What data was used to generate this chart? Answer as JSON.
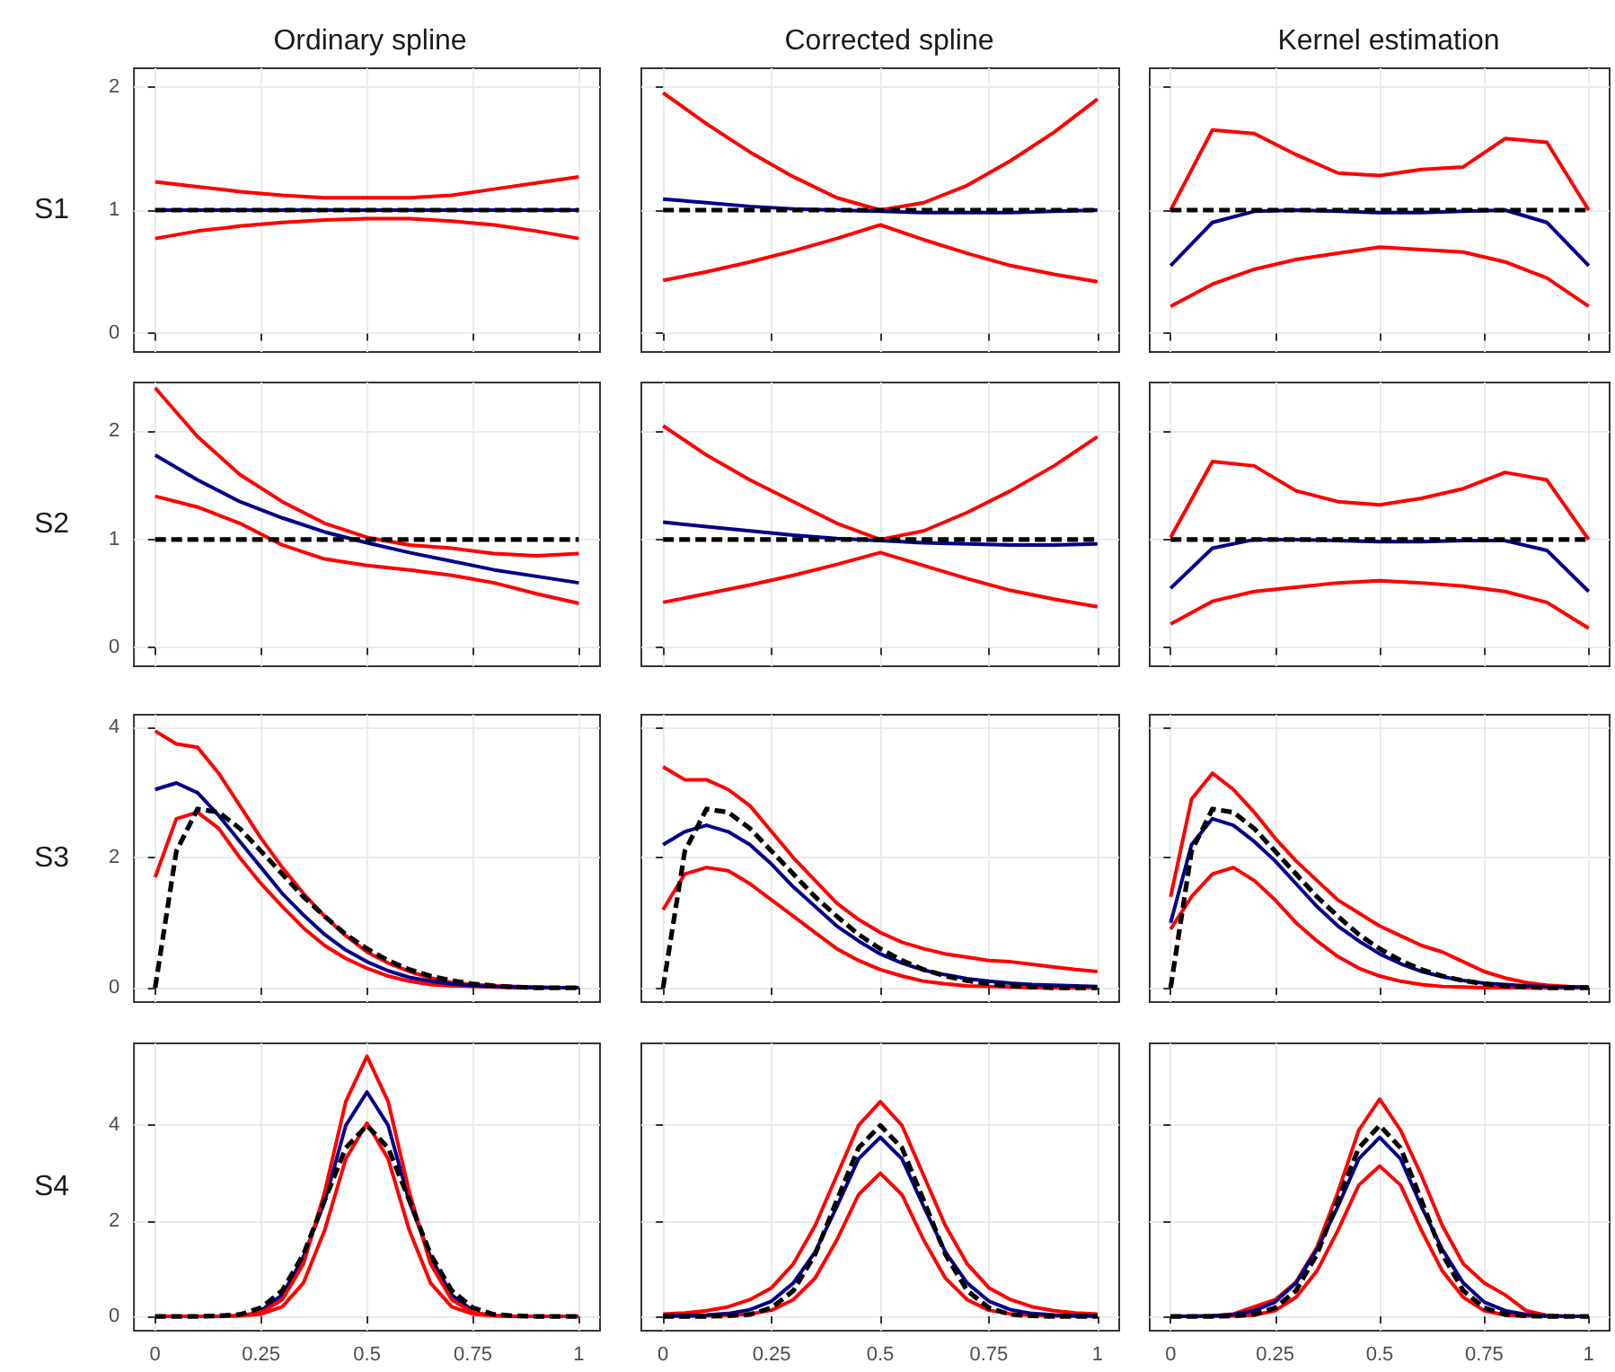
{
  "chart_data": [
    {
      "type": "line",
      "title": "Ordinary spline",
      "ylabel": "S1",
      "x": [
        0,
        0.1,
        0.2,
        0.3,
        0.4,
        0.5,
        0.6,
        0.7,
        0.8,
        0.9,
        1
      ],
      "xlim": [
        -0.05,
        1.05
      ],
      "ylim": [
        -0.15,
        2.15
      ],
      "xticks": [
        0,
        0.25,
        0.5,
        0.75,
        1
      ],
      "yticks": [
        0,
        1,
        2
      ],
      "grid": true,
      "marker": "none",
      "tick_labels": "y",
      "series": [
        {
          "color": "#ff0000",
          "values": [
            1.23,
            1.19,
            1.15,
            1.12,
            1.1,
            1.1,
            1.1,
            1.12,
            1.17,
            1.22,
            1.27
          ]
        },
        {
          "color": "#ff0000",
          "values": [
            0.77,
            0.83,
            0.87,
            0.9,
            0.92,
            0.93,
            0.93,
            0.91,
            0.88,
            0.83,
            0.77
          ]
        },
        {
          "color": "#00008b",
          "values": [
            1,
            1,
            1,
            1,
            1,
            1,
            1,
            1,
            1,
            1,
            1
          ]
        },
        {
          "color": "#000000",
          "line_style": "dashed",
          "values": [
            1,
            1,
            1,
            1,
            1,
            1,
            1,
            1,
            1,
            1,
            1
          ]
        }
      ]
    },
    {
      "type": "line",
      "title": "Corrected spline",
      "x": [
        0,
        0.1,
        0.2,
        0.3,
        0.4,
        0.5,
        0.6,
        0.7,
        0.8,
        0.9,
        1
      ],
      "xlim": [
        -0.05,
        1.05
      ],
      "ylim": [
        -0.15,
        2.15
      ],
      "xticks": [
        0,
        0.25,
        0.5,
        0.75,
        1
      ],
      "yticks": [
        0,
        1,
        2
      ],
      "grid": true,
      "marker": "none",
      "tick_labels": false,
      "series": [
        {
          "color": "#ff0000",
          "values": [
            1.95,
            1.7,
            1.47,
            1.27,
            1.1,
            1.0,
            1.06,
            1.2,
            1.4,
            1.63,
            1.9
          ]
        },
        {
          "color": "#ff0000",
          "values": [
            0.43,
            0.5,
            0.58,
            0.67,
            0.77,
            0.88,
            0.76,
            0.65,
            0.55,
            0.48,
            0.42
          ]
        },
        {
          "color": "#00008b",
          "values": [
            1.09,
            1.06,
            1.03,
            1.01,
            1.0,
            0.99,
            0.98,
            0.98,
            0.98,
            0.99,
            1.0
          ]
        },
        {
          "color": "#000000",
          "line_style": "dashed",
          "values": [
            1,
            1,
            1,
            1,
            1,
            1,
            1,
            1,
            1,
            1,
            1
          ]
        }
      ]
    },
    {
      "type": "line",
      "title": "Kernel estimation",
      "x": [
        0,
        0.1,
        0.2,
        0.3,
        0.4,
        0.5,
        0.6,
        0.7,
        0.8,
        0.9,
        1
      ],
      "xlim": [
        -0.05,
        1.05
      ],
      "ylim": [
        -0.15,
        2.15
      ],
      "xticks": [
        0,
        0.25,
        0.5,
        0.75,
        1
      ],
      "yticks": [
        0,
        1,
        2
      ],
      "grid": true,
      "marker": "none",
      "tick_labels": false,
      "series": [
        {
          "color": "#ff0000",
          "values": [
            1.0,
            1.65,
            1.62,
            1.45,
            1.3,
            1.28,
            1.33,
            1.35,
            1.58,
            1.55,
            1.0
          ]
        },
        {
          "color": "#ff0000",
          "values": [
            0.22,
            0.4,
            0.52,
            0.6,
            0.65,
            0.7,
            0.68,
            0.66,
            0.58,
            0.45,
            0.22
          ]
        },
        {
          "color": "#00008b",
          "values": [
            0.55,
            0.9,
            0.99,
            1.0,
            0.99,
            0.98,
            0.98,
            0.99,
            1.0,
            0.9,
            0.55
          ]
        },
        {
          "color": "#000000",
          "line_style": "dashed",
          "values": [
            1,
            1,
            1,
            1,
            1,
            1,
            1,
            1,
            1,
            1,
            1
          ]
        }
      ]
    },
    {
      "type": "line",
      "ylabel": "S2",
      "x": [
        0,
        0.1,
        0.2,
        0.3,
        0.4,
        0.5,
        0.6,
        0.7,
        0.8,
        0.9,
        1
      ],
      "xlim": [
        -0.05,
        1.05
      ],
      "ylim": [
        -0.17,
        2.45
      ],
      "xticks": [
        0,
        0.25,
        0.5,
        0.75,
        1
      ],
      "yticks": [
        0,
        1,
        2
      ],
      "grid": true,
      "marker": "none",
      "tick_labels": "y",
      "series": [
        {
          "color": "#ff0000",
          "values": [
            2.4,
            1.95,
            1.6,
            1.35,
            1.15,
            1.02,
            0.95,
            0.92,
            0.87,
            0.85,
            0.87
          ]
        },
        {
          "color": "#ff0000",
          "values": [
            1.4,
            1.3,
            1.15,
            0.95,
            0.82,
            0.76,
            0.72,
            0.67,
            0.6,
            0.5,
            0.41
          ]
        },
        {
          "color": "#00008b",
          "values": [
            1.78,
            1.55,
            1.35,
            1.2,
            1.07,
            0.97,
            0.88,
            0.8,
            0.72,
            0.66,
            0.6
          ]
        },
        {
          "color": "#000000",
          "line_style": "dashed",
          "values": [
            1,
            1,
            1,
            1,
            1,
            1,
            1,
            1,
            1,
            1,
            1
          ]
        }
      ]
    },
    {
      "type": "line",
      "x": [
        0,
        0.1,
        0.2,
        0.3,
        0.4,
        0.5,
        0.6,
        0.7,
        0.8,
        0.9,
        1
      ],
      "xlim": [
        -0.05,
        1.05
      ],
      "ylim": [
        -0.17,
        2.45
      ],
      "xticks": [
        0,
        0.25,
        0.5,
        0.75,
        1
      ],
      "yticks": [
        0,
        1,
        2
      ],
      "grid": true,
      "marker": "none",
      "tick_labels": false,
      "series": [
        {
          "color": "#ff0000",
          "values": [
            2.05,
            1.78,
            1.55,
            1.35,
            1.15,
            1.0,
            1.08,
            1.25,
            1.45,
            1.68,
            1.95
          ]
        },
        {
          "color": "#ff0000",
          "values": [
            0.42,
            0.5,
            0.58,
            0.67,
            0.77,
            0.88,
            0.76,
            0.64,
            0.53,
            0.45,
            0.38
          ]
        },
        {
          "color": "#00008b",
          "values": [
            1.16,
            1.12,
            1.08,
            1.04,
            1.01,
            0.99,
            0.97,
            0.96,
            0.95,
            0.95,
            0.96
          ]
        },
        {
          "color": "#000000",
          "line_style": "dashed",
          "values": [
            1,
            1,
            1,
            1,
            1,
            1,
            1,
            1,
            1,
            1,
            1
          ]
        }
      ]
    },
    {
      "type": "line",
      "x": [
        0,
        0.1,
        0.2,
        0.3,
        0.4,
        0.5,
        0.6,
        0.7,
        0.8,
        0.9,
        1
      ],
      "xlim": [
        -0.05,
        1.05
      ],
      "ylim": [
        -0.17,
        2.45
      ],
      "xticks": [
        0,
        0.25,
        0.5,
        0.75,
        1
      ],
      "yticks": [
        0,
        1,
        2
      ],
      "grid": true,
      "marker": "none",
      "tick_labels": false,
      "series": [
        {
          "color": "#ff0000",
          "values": [
            1.02,
            1.72,
            1.68,
            1.45,
            1.35,
            1.32,
            1.38,
            1.47,
            1.62,
            1.55,
            1.0
          ]
        },
        {
          "color": "#ff0000",
          "values": [
            0.22,
            0.43,
            0.52,
            0.56,
            0.6,
            0.62,
            0.6,
            0.57,
            0.52,
            0.42,
            0.18
          ]
        },
        {
          "color": "#00008b",
          "values": [
            0.55,
            0.92,
            1.0,
            1.0,
            0.99,
            0.98,
            0.98,
            0.99,
            0.99,
            0.9,
            0.52
          ]
        },
        {
          "color": "#000000",
          "line_style": "dashed",
          "values": [
            1,
            1,
            1,
            1,
            1,
            1,
            1,
            1,
            1,
            1,
            1
          ]
        }
      ]
    },
    {
      "type": "line",
      "ylabel": "S3",
      "x": [
        0,
        0.05,
        0.1,
        0.15,
        0.2,
        0.25,
        0.3,
        0.35,
        0.4,
        0.45,
        0.5,
        0.55,
        0.6,
        0.65,
        0.7,
        0.75,
        0.8,
        0.85,
        0.9,
        0.95,
        1
      ],
      "xlim": [
        -0.05,
        1.05
      ],
      "ylim": [
        -0.22,
        4.2
      ],
      "xticks": [
        0,
        0.25,
        0.5,
        0.75,
        1
      ],
      "yticks": [
        0,
        2,
        4
      ],
      "grid": true,
      "marker": "none",
      "tick_labels": "y",
      "series": [
        {
          "color": "#ff0000",
          "values": [
            3.95,
            3.75,
            3.7,
            3.3,
            2.8,
            2.3,
            1.85,
            1.45,
            1.1,
            0.8,
            0.55,
            0.38,
            0.25,
            0.15,
            0.08,
            0.05,
            0.03,
            0.02,
            0.01,
            0,
            0
          ]
        },
        {
          "color": "#ff0000",
          "values": [
            1.7,
            2.6,
            2.7,
            2.45,
            2.0,
            1.6,
            1.25,
            0.92,
            0.65,
            0.45,
            0.3,
            0.18,
            0.1,
            0.05,
            0.03,
            0.02,
            0.01,
            0,
            0,
            0,
            0
          ]
        },
        {
          "color": "#00008b",
          "values": [
            3.05,
            3.15,
            3.0,
            2.65,
            2.25,
            1.85,
            1.45,
            1.12,
            0.82,
            0.58,
            0.4,
            0.26,
            0.16,
            0.1,
            0.06,
            0.03,
            0.02,
            0.01,
            0,
            0,
            0
          ]
        },
        {
          "color": "#000000",
          "line_style": "dashed",
          "values": [
            0,
            2.1,
            2.75,
            2.7,
            2.45,
            2.1,
            1.75,
            1.4,
            1.1,
            0.82,
            0.6,
            0.42,
            0.28,
            0.18,
            0.11,
            0.06,
            0.03,
            0.01,
            0,
            0,
            0
          ]
        }
      ]
    },
    {
      "type": "line",
      "x": [
        0,
        0.05,
        0.1,
        0.15,
        0.2,
        0.25,
        0.3,
        0.35,
        0.4,
        0.45,
        0.5,
        0.55,
        0.6,
        0.65,
        0.7,
        0.75,
        0.8,
        0.85,
        0.9,
        0.95,
        1
      ],
      "xlim": [
        -0.05,
        1.05
      ],
      "ylim": [
        -0.22,
        4.2
      ],
      "xticks": [
        0,
        0.25,
        0.5,
        0.75,
        1
      ],
      "yticks": [
        0,
        2,
        4
      ],
      "grid": true,
      "marker": "none",
      "tick_labels": false,
      "series": [
        {
          "color": "#ff0000",
          "values": [
            3.4,
            3.2,
            3.2,
            3.05,
            2.8,
            2.4,
            2.0,
            1.65,
            1.3,
            1.05,
            0.85,
            0.7,
            0.6,
            0.52,
            0.47,
            0.42,
            0.4,
            0.36,
            0.32,
            0.28,
            0.25
          ]
        },
        {
          "color": "#ff0000",
          "values": [
            1.2,
            1.75,
            1.85,
            1.8,
            1.6,
            1.35,
            1.1,
            0.85,
            0.6,
            0.42,
            0.28,
            0.18,
            0.1,
            0.06,
            0.03,
            0.02,
            0.01,
            0,
            0,
            0,
            0
          ]
        },
        {
          "color": "#00008b",
          "values": [
            2.2,
            2.4,
            2.5,
            2.4,
            2.2,
            1.9,
            1.55,
            1.25,
            0.95,
            0.72,
            0.52,
            0.38,
            0.27,
            0.2,
            0.14,
            0.1,
            0.07,
            0.05,
            0.04,
            0.03,
            0.02
          ]
        },
        {
          "color": "#000000",
          "line_style": "dashed",
          "values": [
            0,
            2.1,
            2.75,
            2.7,
            2.45,
            2.1,
            1.75,
            1.4,
            1.1,
            0.82,
            0.6,
            0.42,
            0.28,
            0.18,
            0.11,
            0.06,
            0.03,
            0.01,
            0,
            0,
            0
          ]
        }
      ]
    },
    {
      "type": "line",
      "x": [
        0,
        0.05,
        0.1,
        0.15,
        0.2,
        0.25,
        0.3,
        0.35,
        0.4,
        0.45,
        0.5,
        0.55,
        0.6,
        0.65,
        0.7,
        0.75,
        0.8,
        0.85,
        0.9,
        0.95,
        1
      ],
      "xlim": [
        -0.05,
        1.05
      ],
      "ylim": [
        -0.22,
        4.2
      ],
      "xticks": [
        0,
        0.25,
        0.5,
        0.75,
        1
      ],
      "yticks": [
        0,
        2,
        4
      ],
      "grid": true,
      "marker": "none",
      "tick_labels": false,
      "series": [
        {
          "color": "#ff0000",
          "values": [
            1.4,
            2.9,
            3.3,
            3.05,
            2.7,
            2.3,
            1.95,
            1.65,
            1.35,
            1.15,
            0.95,
            0.8,
            0.65,
            0.55,
            0.4,
            0.25,
            0.15,
            0.08,
            0.04,
            0.02,
            0
          ]
        },
        {
          "color": "#ff0000",
          "values": [
            0.9,
            1.4,
            1.75,
            1.85,
            1.65,
            1.35,
            1.0,
            0.72,
            0.48,
            0.3,
            0.18,
            0.1,
            0.05,
            0.02,
            0.01,
            0,
            0,
            0,
            0,
            0,
            0
          ]
        },
        {
          "color": "#00008b",
          "values": [
            1.0,
            2.2,
            2.6,
            2.5,
            2.25,
            1.95,
            1.6,
            1.25,
            0.95,
            0.72,
            0.52,
            0.37,
            0.25,
            0.17,
            0.11,
            0.07,
            0.05,
            0.03,
            0.02,
            0.01,
            0.01
          ]
        },
        {
          "color": "#000000",
          "line_style": "dashed",
          "values": [
            0,
            2.1,
            2.75,
            2.7,
            2.45,
            2.1,
            1.75,
            1.4,
            1.1,
            0.82,
            0.6,
            0.42,
            0.28,
            0.18,
            0.11,
            0.06,
            0.03,
            0.01,
            0,
            0,
            0
          ]
        }
      ]
    },
    {
      "type": "line",
      "ylabel": "S4",
      "x": [
        0,
        0.05,
        0.1,
        0.15,
        0.2,
        0.25,
        0.3,
        0.35,
        0.4,
        0.45,
        0.5,
        0.55,
        0.6,
        0.65,
        0.7,
        0.75,
        0.8,
        0.85,
        0.9,
        0.95,
        1
      ],
      "xlim": [
        -0.05,
        1.05
      ],
      "ylim": [
        -0.3,
        5.72
      ],
      "xticks": [
        0,
        0.25,
        0.5,
        0.75,
        1
      ],
      "yticks": [
        0,
        2,
        4
      ],
      "grid": true,
      "marker": "none",
      "series": [
        {
          "color": "#00008b",
          "values": [
            null,
            null,
            null,
            null,
            null,
            0.12,
            0.45,
            1.25,
            2.4,
            4.0,
            4.7,
            4.0,
            2.4,
            1.25,
            0.45,
            0.12,
            null,
            null,
            null,
            null,
            null
          ]
        },
        {
          "color": "#ff0000",
          "values": [
            null,
            null,
            null,
            0,
            0.01,
            0.05,
            0.2,
            0.7,
            1.8,
            3.3,
            4.05,
            3.3,
            1.8,
            0.7,
            0.2,
            0.05,
            0.01,
            0,
            null,
            null,
            null
          ]
        },
        {
          "color": "#ff0000",
          "values": [
            0,
            0,
            0,
            0,
            0.02,
            0.08,
            0.35,
            1.1,
            2.6,
            4.5,
            5.45,
            4.5,
            2.6,
            1.1,
            0.35,
            0.08,
            0.02,
            0,
            0,
            0,
            0
          ]
        },
        {
          "color": "#000000",
          "line_style": "dashed",
          "values": [
            0,
            0,
            0,
            0.01,
            0.04,
            0.18,
            0.54,
            1.3,
            2.43,
            3.53,
            4.0,
            3.53,
            2.43,
            1.3,
            0.54,
            0.18,
            0.04,
            0.01,
            0,
            0,
            0
          ]
        }
      ]
    },
    {
      "type": "line",
      "x": [
        0,
        0.05,
        0.1,
        0.15,
        0.2,
        0.25,
        0.3,
        0.35,
        0.4,
        0.45,
        0.5,
        0.55,
        0.6,
        0.65,
        0.7,
        0.75,
        0.8,
        0.85,
        0.9,
        0.95,
        1
      ],
      "xlim": [
        -0.05,
        1.05
      ],
      "ylim": [
        -0.3,
        5.72
      ],
      "xticks": [
        0,
        0.25,
        0.5,
        0.75,
        1
      ],
      "yticks": [
        0,
        2,
        4
      ],
      "grid": true,
      "marker": "none",
      "tick_labels": "x",
      "series": [
        {
          "color": "#ff0000",
          "values": [
            0.05,
            0.07,
            0.12,
            0.2,
            0.35,
            0.6,
            1.1,
            1.9,
            2.95,
            4.0,
            4.5,
            4.0,
            2.95,
            1.9,
            1.1,
            0.6,
            0.35,
            0.2,
            0.12,
            0.07,
            0.05
          ]
        },
        {
          "color": "#ff0000",
          "values": [
            0,
            0,
            0.01,
            0.02,
            0.05,
            0.13,
            0.35,
            0.8,
            1.6,
            2.55,
            3.0,
            2.55,
            1.6,
            0.8,
            0.35,
            0.13,
            0.05,
            0.02,
            0.01,
            0,
            0
          ]
        },
        {
          "color": "#00008b",
          "values": [
            0.01,
            0.02,
            0.03,
            0.06,
            0.14,
            0.32,
            0.7,
            1.35,
            2.3,
            3.3,
            3.75,
            3.3,
            2.3,
            1.35,
            0.7,
            0.32,
            0.14,
            0.06,
            0.03,
            0.02,
            0.01
          ]
        },
        {
          "color": "#000000",
          "line_style": "dashed",
          "values": [
            0,
            0,
            0,
            0.01,
            0.04,
            0.18,
            0.54,
            1.3,
            2.43,
            3.53,
            4.0,
            3.53,
            2.43,
            1.3,
            0.54,
            0.18,
            0.04,
            0.01,
            0,
            0,
            0
          ]
        }
      ]
    },
    {
      "type": "line",
      "x": [
        0,
        0.05,
        0.1,
        0.15,
        0.2,
        0.25,
        0.3,
        0.35,
        0.4,
        0.45,
        0.5,
        0.55,
        0.6,
        0.65,
        0.7,
        0.75,
        0.8,
        0.85,
        0.9,
        0.95,
        1
      ],
      "xlim": [
        -0.05,
        1.05
      ],
      "ylim": [
        -0.3,
        5.72
      ],
      "xticks": [
        0,
        0.25,
        0.5,
        0.75,
        1
      ],
      "yticks": [
        0,
        2,
        4
      ],
      "grid": true,
      "marker": "none",
      "tick_labels": "x",
      "series": [
        {
          "color": "#ff0000",
          "values": [
            0,
            0,
            0.01,
            0.05,
            0.2,
            0.35,
            0.72,
            1.45,
            2.6,
            3.9,
            4.55,
            3.9,
            2.95,
            1.9,
            1.1,
            0.7,
            0.45,
            0.12,
            0.02,
            0,
            0
          ]
        },
        {
          "color": "#ff0000",
          "values": [
            0,
            0,
            0,
            0.01,
            0.03,
            0.12,
            0.4,
            0.95,
            1.8,
            2.75,
            3.15,
            2.75,
            1.8,
            0.95,
            0.4,
            0.12,
            0.03,
            0.01,
            0,
            0,
            0
          ]
        },
        {
          "color": "#00008b",
          "values": [
            0,
            0,
            0.01,
            0.04,
            0.12,
            0.3,
            0.7,
            1.4,
            2.3,
            3.3,
            3.75,
            3.3,
            2.3,
            1.4,
            0.7,
            0.3,
            0.12,
            0.04,
            0.01,
            0,
            0
          ]
        },
        {
          "color": "#000000",
          "line_style": "dashed",
          "values": [
            0,
            0,
            0,
            0.01,
            0.04,
            0.18,
            0.54,
            1.3,
            2.43,
            3.53,
            4.0,
            3.53,
            2.43,
            1.3,
            0.54,
            0.18,
            0.04,
            0.01,
            0,
            0,
            0
          ]
        }
      ]
    }
  ]
}
